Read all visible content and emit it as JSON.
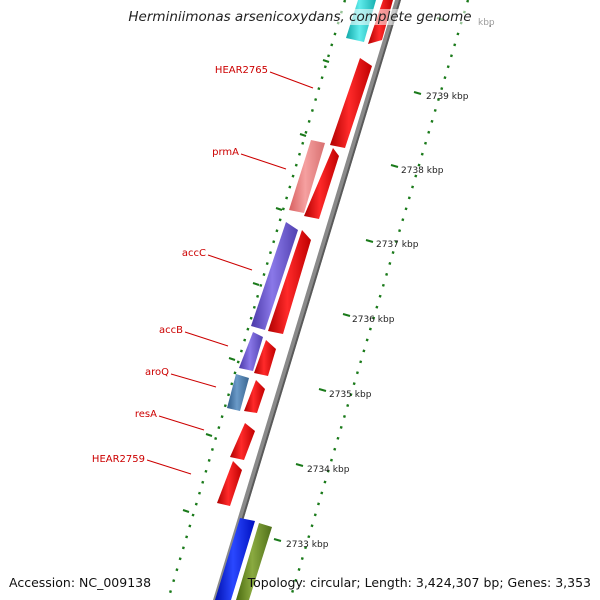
{
  "title": "Herminiimonas arsenicoxydans, complete genome",
  "footer": {
    "accession": "Accession: NC_009138",
    "summary": "Topology: circular; Length: 3,424,307 bp; Genes: 3,353"
  },
  "colors": {
    "backbone": "#8a8a8a",
    "tick": "#1a7a1a",
    "forward_gene": "#ee0000",
    "label_red": "#cc0000"
  },
  "scale": {
    "labels": [
      "2733 kbp",
      "2734 kbp",
      "2735 kbp",
      "2736 kbp",
      "2737 kbp",
      "2738 kbp",
      "2739 kbp"
    ],
    "partial_top_label": "kbp"
  },
  "genes_labeled": [
    {
      "name": "HEAR2765",
      "color": "#ee0000"
    },
    {
      "name": "prmA",
      "color": "#f08080"
    },
    {
      "name": "accC",
      "color": "#6a55cc"
    },
    {
      "name": "accB",
      "color": "#6a55cc"
    },
    {
      "name": "aroQ",
      "color": "#4a7aa8"
    },
    {
      "name": "resA",
      "color": "#ee0000"
    },
    {
      "name": "HEAR2759",
      "color": "#ee0000"
    }
  ],
  "other_features": [
    {
      "color": "#22cccc"
    },
    {
      "color": "#0018ee"
    },
    {
      "color": "#6a8a22"
    }
  ]
}
